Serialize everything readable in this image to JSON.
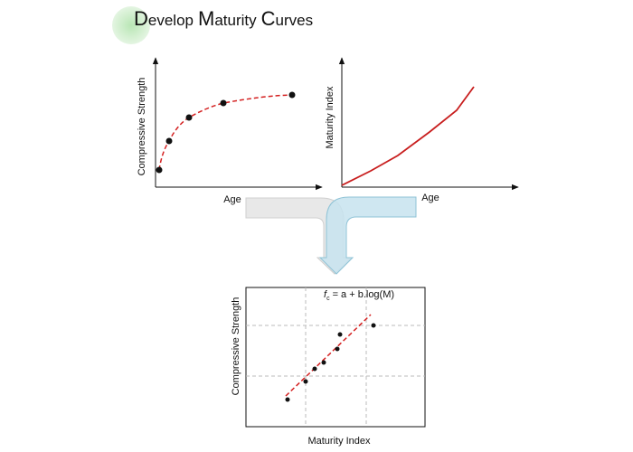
{
  "title": {
    "words": [
      "Develop",
      "Maturity",
      "Curves"
    ]
  },
  "strength_age_chart": {
    "y_label": "Compressive Strength",
    "x_label": "Age"
  },
  "maturity_age_chart": {
    "y_label": "Maturity Index",
    "x_label": "Age"
  },
  "regression_chart": {
    "y_label": "Compressive Strength",
    "x_label": "Maturity Index",
    "formula": {
      "symbol": "f",
      "subscript": "c",
      "rhs": "= a + b.log(M)"
    }
  }
}
